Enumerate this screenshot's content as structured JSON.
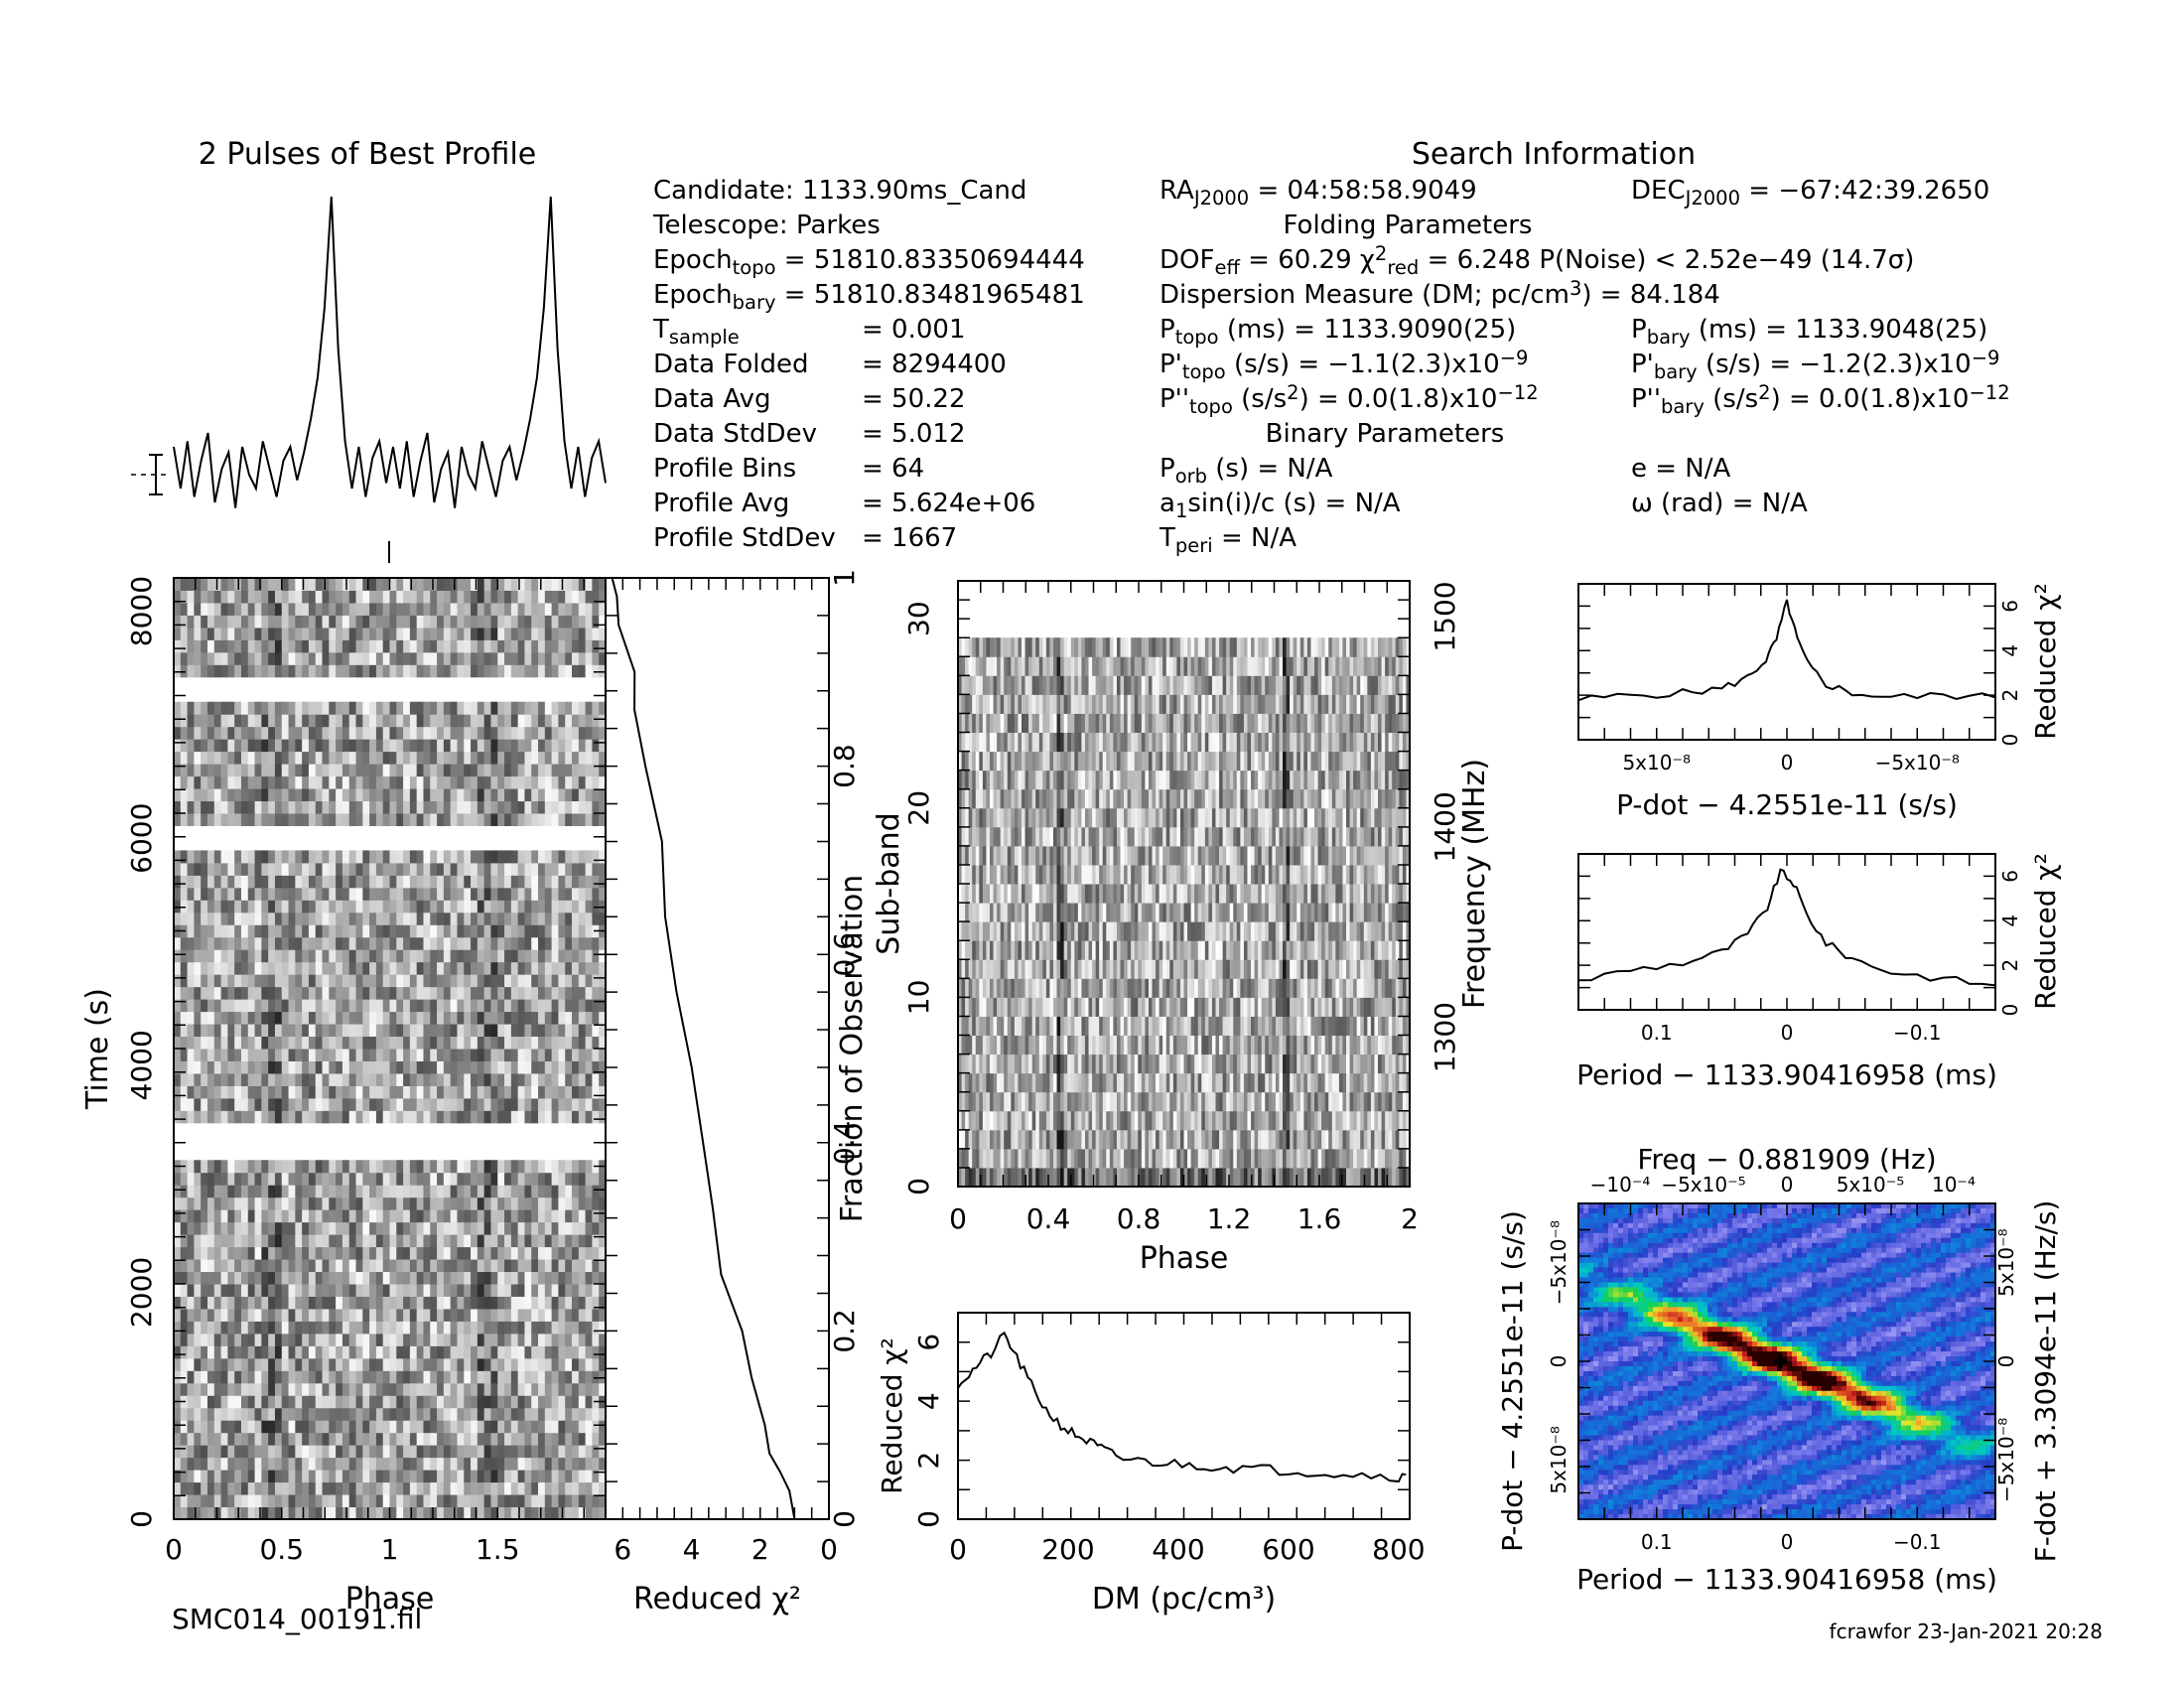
{
  "footer": {
    "filename": "SMC014_00191.fil",
    "user_stamp": "fcrawfor 23-Jan-2021 20:28"
  },
  "header": {
    "profile_title": "2 Pulses of Best Profile",
    "search_title": "Search Information",
    "folding_title": "Folding Parameters",
    "binary_title": "Binary Parameters",
    "info_left": [
      [
        "Candidate:  1133.90ms_Cand",
        ""
      ],
      [
        "Telescope:  Parkes",
        ""
      ],
      [
        "Epoch<sub>topo</sub> = 51810.83350694444",
        ""
      ],
      [
        "Epoch<sub>bary</sub> = 51810.83481965481",
        ""
      ],
      [
        "T<sub>sample</sub>",
        "=   0.001"
      ],
      [
        "Data Folded",
        "=   8294400"
      ],
      [
        "Data Avg",
        "=   50.22"
      ],
      [
        "Data StdDev",
        "=   5.012"
      ],
      [
        "Profile Bins",
        "=   64"
      ],
      [
        "Profile Avg",
        "=   5.624e+06"
      ],
      [
        "Profile StdDev",
        "=   1667"
      ]
    ],
    "ra": "RA<sub>J2000</sub> = 04:58:58.9049",
    "dec": "DEC<sub>J2000</sub> = −67:42:39.2650",
    "fold_lines": [
      "DOF<sub>eff</sub> = 60.29  χ<sup>2</sup><sub>red</sub> = 6.248  P(Noise) < 2.52e−49   (14.7σ)",
      "Dispersion Measure (DM; pc/cm<sup>3</sup>) = 84.184"
    ],
    "period_left": [
      "P<sub>topo</sub> (ms)  =   1133.9090(25)",
      "P'<sub>topo</sub> (s/s) = −1.1(2.3)x10<sup>−9</sup>",
      "P''<sub>topo</sub> (s/s<sup>2</sup>) = 0.0(1.8)x10<sup>−12</sup>"
    ],
    "period_right": [
      "P<sub>bary</sub> (ms) =   1133.9048(25)",
      "P'<sub>bary</sub> (s/s) = −1.2(2.3)x10<sup>−9</sup>",
      "P''<sub>bary</sub> (s/s<sup>2</sup>) = 0.0(1.8)x10<sup>−12</sup>"
    ],
    "binary_left": [
      "P<sub>orb</sub> (s) = N/A",
      "a<sub>1</sub>sin(i)/c (s) = N/A",
      "T<sub>peri</sub> = N/A"
    ],
    "binary_right": [
      "e = N/A",
      "ω (rad) = N/A"
    ]
  },
  "chart_data": [
    {
      "id": "profile",
      "type": "line",
      "title": "2 Pulses of Best Profile",
      "xlim": [
        0,
        2
      ],
      "grid": false,
      "x_pattern": "two identical pulses, peaks at phase 0.44 and 1.44 over noise baseline",
      "values": [
        0.1,
        -0.05,
        0.12,
        -0.08,
        0.05,
        0.15,
        -0.1,
        0.02,
        0.08,
        -0.12,
        0.1,
        0.0,
        -0.05,
        0.12,
        0.02,
        -0.08,
        0.05,
        0.1,
        -0.02,
        0.08,
        0.2,
        0.35,
        0.6,
        1.0,
        0.45,
        0.12,
        -0.05,
        0.1,
        -0.08,
        0.06,
        0.12,
        -0.03
      ]
    },
    {
      "id": "time-phase",
      "type": "heatmap",
      "xlabel": "Phase",
      "ylabel": "Time (s)",
      "xlim": [
        0,
        2
      ],
      "ylim": [
        0,
        8294
      ],
      "xticks": [
        "0",
        "0.5",
        "1",
        "1.5"
      ],
      "yticks": [
        "0",
        "2000",
        "4000",
        "6000",
        "8000"
      ],
      "gaps_s": [
        [
          3270,
          3400
        ],
        [
          5930,
          6070
        ],
        [
          7270,
          7420
        ]
      ],
      "colormap": "grayscale"
    },
    {
      "id": "time-chi2",
      "type": "line",
      "xlabel": "Reduced χ²",
      "ylabel": "Fraction of Observation",
      "xlim": [
        6.5,
        0
      ],
      "ylim": [
        0,
        1
      ],
      "xticks": [
        "6",
        "4",
        "2",
        "0"
      ],
      "yticks": [
        "0",
        "0.2",
        "0.4",
        "0.6",
        "0.8",
        "1"
      ],
      "points": [
        [
          1.0,
          0.0
        ],
        [
          1.2,
          0.03
        ],
        [
          1.5,
          0.05
        ],
        [
          1.6,
          0.07
        ],
        [
          1.9,
          0.1
        ],
        [
          2.2,
          0.15
        ],
        [
          2.6,
          0.2
        ],
        [
          3.0,
          0.26
        ],
        [
          3.4,
          0.33
        ],
        [
          3.7,
          0.4
        ],
        [
          4.0,
          0.48
        ],
        [
          4.3,
          0.56
        ],
        [
          4.7,
          0.64
        ],
        [
          4.9,
          0.72
        ],
        [
          5.3,
          0.8
        ],
        [
          5.6,
          0.86
        ],
        [
          5.8,
          0.9
        ],
        [
          6.0,
          0.95
        ],
        [
          6.1,
          0.98
        ],
        [
          6.2,
          1.0
        ]
      ]
    },
    {
      "id": "subband-phase",
      "type": "heatmap",
      "xlabel": "Phase",
      "ylabel": "Sub-band",
      "y2label": "Frequency (MHz)",
      "xlim": [
        0,
        2
      ],
      "ylim": [
        0,
        32
      ],
      "y2lim": [
        1229,
        1517
      ],
      "xticks": [
        "0",
        "0.4",
        "0.8",
        "1.2",
        "1.6",
        "2"
      ],
      "yticks": [
        "0",
        "10",
        "20",
        "30"
      ],
      "y2ticks": [
        "1300",
        "1400",
        "1500"
      ],
      "filled_subbands": 29,
      "pulse_phases": [
        0.44,
        1.44
      ],
      "colormap": "grayscale"
    },
    {
      "id": "dm-chi2",
      "type": "line",
      "xlabel": "DM (pc/cm³)",
      "ylabel": "Reduced χ²",
      "xlim": [
        0,
        820
      ],
      "ylim": [
        0,
        7
      ],
      "xticks": [
        "0",
        "200",
        "400",
        "600",
        "800"
      ],
      "yticks": [
        "0",
        "2",
        "4",
        "6"
      ],
      "points": [
        [
          0,
          4.6
        ],
        [
          20,
          4.9
        ],
        [
          40,
          5.3
        ],
        [
          60,
          5.6
        ],
        [
          84,
          6.25
        ],
        [
          100,
          5.7
        ],
        [
          120,
          5.0
        ],
        [
          140,
          4.3
        ],
        [
          160,
          3.7
        ],
        [
          180,
          3.3
        ],
        [
          200,
          3.0
        ],
        [
          220,
          2.8
        ],
        [
          240,
          2.6
        ],
        [
          260,
          2.4
        ],
        [
          280,
          2.2
        ],
        [
          300,
          2.05
        ],
        [
          340,
          1.95
        ],
        [
          380,
          1.9
        ],
        [
          420,
          1.85
        ],
        [
          460,
          1.8
        ],
        [
          500,
          1.75
        ],
        [
          550,
          1.7
        ],
        [
          600,
          1.65
        ],
        [
          650,
          1.6
        ],
        [
          700,
          1.55
        ],
        [
          750,
          1.5
        ],
        [
          800,
          1.45
        ],
        [
          820,
          1.4
        ]
      ]
    },
    {
      "id": "pdot-chi2",
      "type": "line",
      "xlabel": "P-dot − 4.2551e-11 (s/s)",
      "ylabel": "Reduced χ²",
      "xlim": [
        8e-08,
        -8e-08
      ],
      "ylim": [
        0,
        7
      ],
      "xticks": [
        "5x10⁻⁸",
        "0",
        "−5x10⁻⁸"
      ],
      "yticks": [
        "0",
        "2",
        "4",
        "6"
      ],
      "points": [
        [
          8e-08,
          1.8
        ],
        [
          6e-08,
          2.0
        ],
        [
          4e-08,
          2.1
        ],
        [
          2.5e-08,
          2.3
        ],
        [
          1.5e-08,
          2.8
        ],
        [
          8e-09,
          3.6
        ],
        [
          4e-09,
          4.5
        ],
        [
          0,
          6.2
        ],
        [
          -4e-09,
          4.5
        ],
        [
          -8e-09,
          3.4
        ],
        [
          -1.5e-08,
          2.5
        ],
        [
          -2.5e-08,
          2.1
        ],
        [
          -4e-08,
          1.9
        ],
        [
          -6e-08,
          2.0
        ],
        [
          -8e-08,
          1.9
        ]
      ]
    },
    {
      "id": "period-chi2",
      "type": "line",
      "xlabel": "Period − 1133.90416958 (ms)",
      "ylabel": "Reduced χ²",
      "xlim": [
        0.16,
        -0.16
      ],
      "ylim": [
        0,
        7
      ],
      "xticks": [
        "0.1",
        "0",
        "−0.1"
      ],
      "yticks": [
        "0",
        "2",
        "4",
        "6"
      ],
      "points": [
        [
          0.16,
          1.3
        ],
        [
          0.12,
          1.8
        ],
        [
          0.08,
          2.1
        ],
        [
          0.05,
          2.6
        ],
        [
          0.03,
          3.4
        ],
        [
          0.015,
          4.6
        ],
        [
          0.005,
          6.2
        ],
        [
          -0.005,
          5.7
        ],
        [
          -0.015,
          4.3
        ],
        [
          -0.03,
          3.0
        ],
        [
          -0.05,
          2.3
        ],
        [
          -0.08,
          1.7
        ],
        [
          -0.12,
          1.4
        ],
        [
          -0.16,
          1.1
        ]
      ]
    },
    {
      "id": "p-pdot",
      "type": "heatmap",
      "title": "Freq − 0.881909 (Hz)",
      "xlabel": "Period − 1133.90416958 (ms)",
      "ylabel": "P-dot − 4.2551e-11 (s/s)",
      "y2label": "F-dot + 3.3094e-11 (Hz/s)",
      "xlim": [
        0.16,
        -0.16
      ],
      "ylim": [
        8e-08,
        -8e-08
      ],
      "xticks": [
        "0.1",
        "0",
        "−0.1"
      ],
      "top_ticks": [
        "−10⁻⁴",
        "−5x10⁻⁵",
        "0",
        "5x10⁻⁵",
        "10⁻⁴"
      ],
      "yticks": [
        "−5x10⁻⁸",
        "0",
        "5x10⁻⁸"
      ],
      "y2ticks": [
        "5x10⁻⁸",
        "0",
        "−5x10⁻⁸"
      ],
      "peak": [
        0.005,
        0
      ],
      "colormap": "rainbow"
    }
  ]
}
